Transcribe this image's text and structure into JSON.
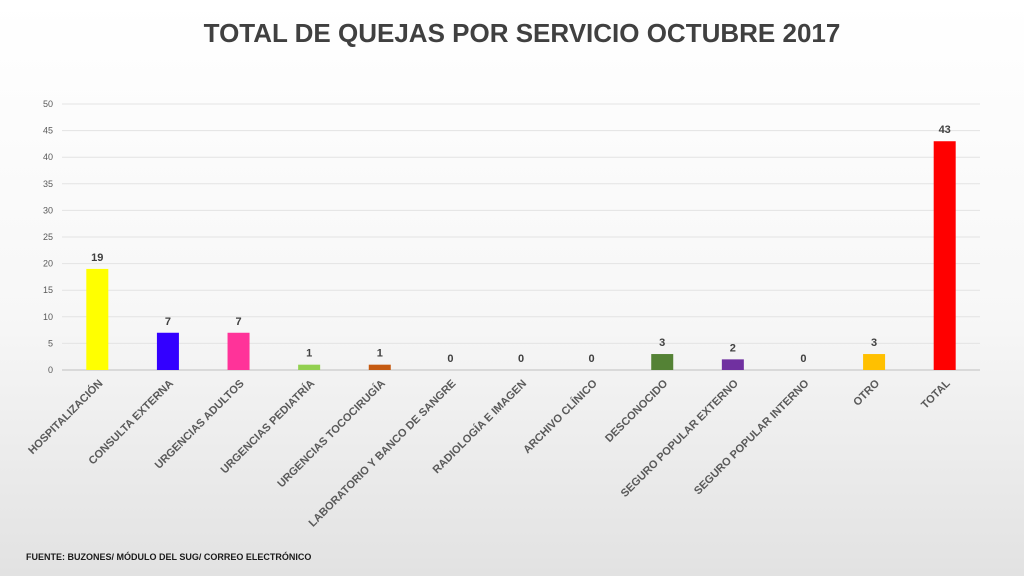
{
  "chart_data": {
    "type": "bar",
    "title": "TOTAL DE QUEJAS POR SERVICIO OCTUBRE 2017",
    "xlabel": "",
    "ylabel": "",
    "ylim": [
      0,
      50
    ],
    "yticks": [
      0,
      5,
      10,
      15,
      20,
      25,
      30,
      35,
      40,
      45,
      50
    ],
    "grid": true,
    "legend": "none",
    "categories": [
      "HOSPITALIZACIÓN",
      "CONSULTA EXTERNA",
      "URGENCIAS ADULTOS",
      "URGENCIAS PEDIATRÍA",
      "URGENCIAS TOCOCIRUGÍA",
      "LABORATORIO Y BANCO DE SANGRE",
      "RADIOLOGÍA E IMAGEN",
      "ARCHIVO CLÍNICO",
      "DESCONOCIDO",
      "SEGURO POPULAR EXTERNO",
      "SEGURO POPULAR INTERNO",
      "OTRO",
      "TOTAL"
    ],
    "values": [
      19,
      7,
      7,
      1,
      1,
      0,
      0,
      0,
      3,
      2,
      0,
      3,
      43
    ],
    "colors": [
      "#ffff00",
      "#3300ff",
      "#ff3399",
      "#92d050",
      "#c55a11",
      "#a6a6a6",
      "#a6a6a6",
      "#a6a6a6",
      "#548235",
      "#7030a0",
      "#a6a6a6",
      "#ffc000",
      "#ff0000"
    ]
  },
  "footer": {
    "source": "FUENTE: BUZONES/ MÓDULO DEL SUG/ CORREO ELECTRÓNICO"
  }
}
